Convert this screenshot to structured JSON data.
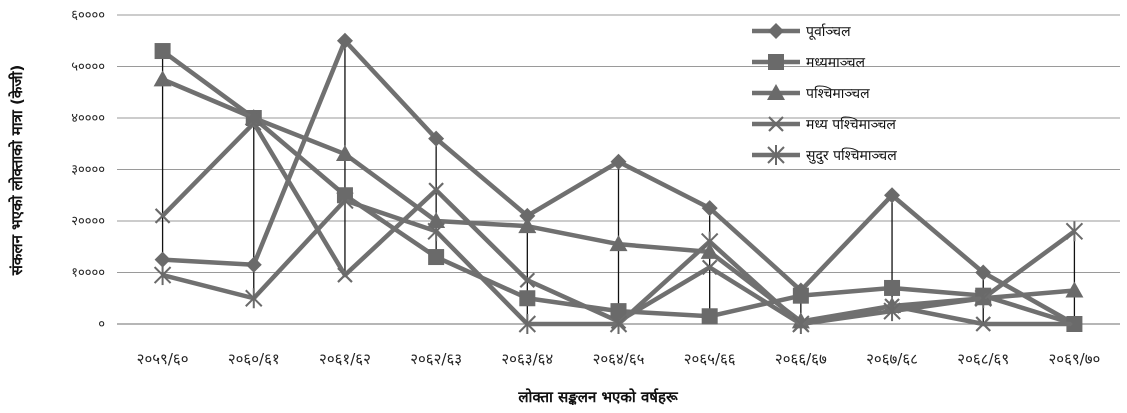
{
  "chart_data": {
    "type": "line",
    "title": "",
    "xlabel": "लोक्ता  सङ्कलन भएको वर्षहरू",
    "ylabel": "संकलन भएको लोक्ताको मात्रा (केजी)",
    "ylim": [
      0,
      60000
    ],
    "yticks": [
      0,
      10000,
      20000,
      30000,
      40000,
      50000,
      60000
    ],
    "ytick_labels": [
      "०",
      "१००००",
      "२००००",
      "३००००",
      "४००००",
      "५००००",
      "६००००"
    ],
    "categories": [
      "२०५९/६०",
      "२०६०/६१",
      "२०६१/६२",
      "२०६२/६३",
      "२०६३/६४",
      "२०६४/६५",
      "२०६५/६६",
      "२०६६/६७",
      "२०६७/६८",
      "२०६८/६९",
      "२०६९/७०"
    ],
    "grid": true,
    "legend_position": "top-right",
    "line_color": "#707070",
    "marker_color": "#6a6a6a",
    "series": [
      {
        "name": "पूर्वाञ्चल",
        "marker": "diamond",
        "values": [
          12500,
          11500,
          55000,
          36000,
          21000,
          31500,
          22500,
          6500,
          25000,
          10000,
          0
        ]
      },
      {
        "name": "मध्यमाञ्चल",
        "marker": "square",
        "values": [
          53000,
          40000,
          25000,
          13000,
          5000,
          2500,
          1500,
          5500,
          7000,
          5500,
          0
        ]
      },
      {
        "name": "पश्चिमाञ्चल",
        "marker": "triangle",
        "values": [
          47500,
          40000,
          33000,
          20000,
          19000,
          15500,
          14000,
          500,
          3500,
          5000,
          6500
        ]
      },
      {
        "name": "मध्य पश्चिमाञ्चल",
        "marker": "x",
        "values": [
          21000,
          39000,
          9500,
          26000,
          8500,
          500,
          11000,
          0,
          3500,
          0,
          0
        ]
      },
      {
        "name": "सुदुर पश्चिमाञ्चल",
        "marker": "star",
        "values": [
          9500,
          5000,
          24000,
          18000,
          0,
          0,
          16000,
          0,
          2500,
          5000,
          18000
        ]
      }
    ]
  }
}
